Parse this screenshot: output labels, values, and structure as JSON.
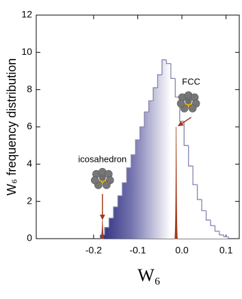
{
  "chart_data": {
    "type": "histogram",
    "xlabel": "W₆",
    "ylabel": "W₆ frequency distribution",
    "bins": [
      -0.185,
      -0.175,
      -0.165,
      -0.155,
      -0.145,
      -0.135,
      -0.125,
      -0.115,
      -0.105,
      -0.095,
      -0.085,
      -0.075,
      -0.065,
      -0.055,
      -0.045,
      -0.035,
      -0.025,
      -0.015,
      -0.005,
      0.005,
      0.015,
      0.025,
      0.035,
      0.045,
      0.055,
      0.065,
      0.075,
      0.085,
      0.095,
      0.105
    ],
    "counts": [
      0.2,
      0.6,
      1.1,
      1.7,
      2.3,
      3.0,
      3.8,
      4.5,
      5.3,
      6.0,
      6.8,
      7.4,
      8.1,
      8.8,
      9.6,
      9.4,
      8.6,
      7.6,
      6.3,
      5.0,
      3.9,
      2.9,
      2.1,
      1.5,
      1.0,
      0.7,
      0.4,
      0.2,
      0.1
    ],
    "color": "#2b2a7c",
    "edge_color": "#8482ad",
    "spikes": [
      {
        "label": "icosahedron",
        "x": -0.18,
        "value": 1.0
      },
      {
        "label": "FCC",
        "x": -0.013,
        "value": 6.0
      }
    ],
    "spike_color": "#a33a1c",
    "xlim": [
      -0.33,
      0.13
    ],
    "ylim": [
      0,
      12
    ],
    "xticks": [
      -0.2,
      -0.1,
      {
        "value": 0,
        "label": "0.0"
      },
      0.1
    ],
    "yticks": [
      0,
      2,
      4,
      6,
      8,
      10,
      12
    ]
  }
}
